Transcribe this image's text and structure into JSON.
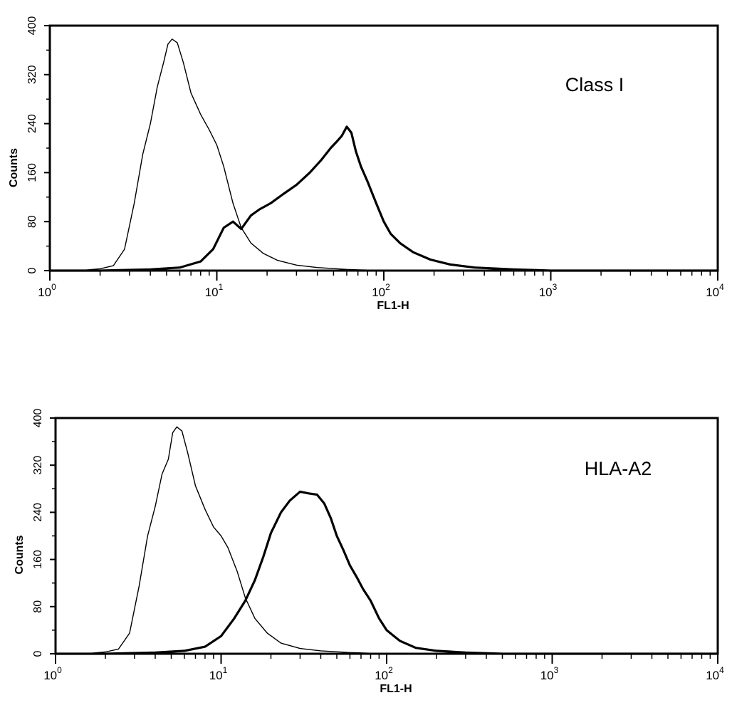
{
  "chart_data": [
    {
      "type": "line",
      "annotation": "Class I",
      "xlabel": "FL1-H",
      "ylabel": "Counts",
      "xscale": "log",
      "xlim": [
        1,
        10000
      ],
      "ylim": [
        0,
        400
      ],
      "xticks": [
        {
          "value": 1,
          "base": "10",
          "exp": "0"
        },
        {
          "value": 10,
          "base": "10",
          "exp": "1"
        },
        {
          "value": 100,
          "base": "10",
          "exp": "2"
        },
        {
          "value": 1000,
          "base": "10",
          "exp": "3"
        },
        {
          "value": 10000,
          "base": "10",
          "exp": "4"
        }
      ],
      "yticks": [
        "0",
        "80",
        "160",
        "240",
        "320",
        "400"
      ],
      "series": [
        {
          "style": "thin",
          "x": [
            1,
            1.5,
            2,
            2.4,
            2.8,
            3.2,
            3.6,
            4,
            4.4,
            4.8,
            5.1,
            5.4,
            5.8,
            6.3,
            7,
            8,
            9,
            10,
            11,
            12.5,
            14,
            16,
            19,
            23,
            30,
            40,
            60,
            100,
            10000
          ],
          "y": [
            0,
            0,
            3,
            8,
            35,
            110,
            190,
            240,
            300,
            340,
            370,
            378,
            372,
            340,
            290,
            255,
            230,
            205,
            170,
            110,
            70,
            45,
            28,
            17,
            9,
            5,
            2,
            0,
            0
          ]
        },
        {
          "style": "thick",
          "x": [
            1,
            2,
            4,
            6,
            8,
            9.5,
            11,
            12.5,
            14,
            16,
            18,
            21,
            25,
            30,
            36,
            42,
            48,
            52,
            56,
            60,
            64,
            68,
            73,
            80,
            90,
            100,
            110,
            125,
            150,
            190,
            250,
            350,
            600,
            1000,
            10000
          ],
          "y": [
            0,
            0,
            2,
            5,
            15,
            35,
            70,
            80,
            68,
            90,
            100,
            110,
            125,
            140,
            160,
            180,
            200,
            210,
            220,
            235,
            225,
            195,
            170,
            145,
            110,
            80,
            60,
            45,
            30,
            18,
            10,
            5,
            2,
            0,
            0
          ]
        }
      ]
    },
    {
      "type": "line",
      "annotation": "HLA-A2",
      "xlabel": "FL1-H",
      "ylabel": "Counts",
      "xscale": "log",
      "xlim": [
        1,
        10000
      ],
      "ylim": [
        0,
        400
      ],
      "xticks": [
        {
          "value": 1,
          "base": "10",
          "exp": "0"
        },
        {
          "value": 10,
          "base": "10",
          "exp": "1"
        },
        {
          "value": 100,
          "base": "10",
          "exp": "2"
        },
        {
          "value": 1000,
          "base": "10",
          "exp": "3"
        },
        {
          "value": 10000,
          "base": "10",
          "exp": "4"
        }
      ],
      "yticks": [
        "0",
        "80",
        "160",
        "240",
        "320",
        "400"
      ],
      "series": [
        {
          "style": "thin",
          "x": [
            1,
            1.5,
            2,
            2.4,
            2.8,
            3.2,
            3.6,
            4,
            4.4,
            4.8,
            5.1,
            5.4,
            5.8,
            6.3,
            7,
            8,
            9,
            10,
            11,
            12.5,
            14,
            16,
            19,
            23,
            30,
            40,
            60,
            100,
            10000
          ],
          "y": [
            0,
            0,
            3,
            8,
            35,
            115,
            200,
            250,
            305,
            330,
            375,
            385,
            378,
            340,
            285,
            245,
            215,
            200,
            180,
            140,
            95,
            60,
            35,
            18,
            9,
            5,
            2,
            0,
            0
          ]
        },
        {
          "style": "thick",
          "x": [
            1,
            2,
            4,
            6,
            8,
            10,
            12,
            14,
            16,
            18,
            20,
            23,
            26,
            30,
            34,
            38,
            42,
            46,
            50,
            55,
            60,
            66,
            72,
            80,
            90,
            100,
            120,
            150,
            200,
            300,
            500,
            1000,
            10000
          ],
          "y": [
            0,
            0,
            2,
            5,
            12,
            30,
            60,
            90,
            125,
            165,
            205,
            240,
            260,
            275,
            272,
            270,
            255,
            230,
            200,
            175,
            150,
            130,
            110,
            90,
            60,
            40,
            22,
            10,
            5,
            2,
            0,
            0,
            0
          ]
        }
      ]
    }
  ]
}
